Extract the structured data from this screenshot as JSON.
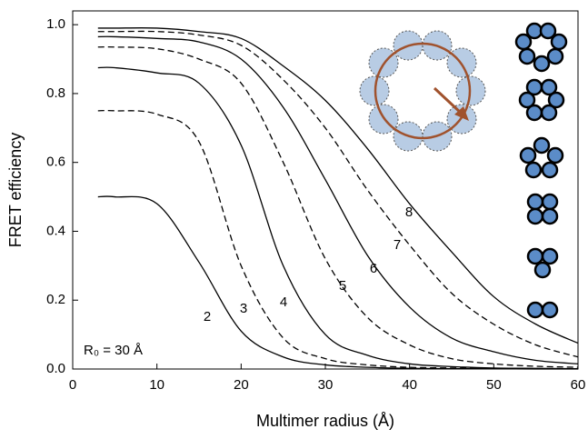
{
  "chart_data": {
    "type": "line",
    "xlabel": "Multimer radius (Å)",
    "ylabel": "FRET efficiency",
    "annotation": "R₀ = 30 Å",
    "x": [
      3,
      5,
      10,
      15,
      20,
      25,
      30,
      35,
      40,
      45,
      50,
      55,
      60
    ],
    "series": [
      {
        "name": "2",
        "color": "#000000",
        "dash": false,
        "values": [
          0.5,
          0.5,
          0.48,
          0.31,
          0.11,
          0.035,
          0.012,
          0.005,
          0.002,
          0.001,
          0.001,
          0,
          0
        ]
      },
      {
        "name": "3",
        "color": "#000000",
        "dash": true,
        "values": [
          0.75,
          0.75,
          0.74,
          0.66,
          0.3,
          0.09,
          0.03,
          0.012,
          0.005,
          0.003,
          0.002,
          0.001,
          0.001
        ]
      },
      {
        "name": "4",
        "color": "#000000",
        "dash": false,
        "values": [
          0.875,
          0.875,
          0.86,
          0.83,
          0.65,
          0.3,
          0.1,
          0.04,
          0.015,
          0.007,
          0.003,
          0.002,
          0.001
        ]
      },
      {
        "name": "5",
        "color": "#000000",
        "dash": true,
        "values": [
          0.935,
          0.935,
          0.93,
          0.9,
          0.83,
          0.6,
          0.32,
          0.15,
          0.07,
          0.03,
          0.015,
          0.008,
          0.005
        ]
      },
      {
        "name": "6",
        "color": "#000000",
        "dash": false,
        "values": [
          0.965,
          0.965,
          0.96,
          0.95,
          0.9,
          0.76,
          0.55,
          0.33,
          0.18,
          0.09,
          0.05,
          0.025,
          0.015
        ]
      },
      {
        "name": "7",
        "color": "#000000",
        "dash": true,
        "values": [
          0.98,
          0.98,
          0.98,
          0.97,
          0.94,
          0.84,
          0.7,
          0.52,
          0.36,
          0.22,
          0.13,
          0.07,
          0.035
        ]
      },
      {
        "name": "8",
        "color": "#000000",
        "dash": false,
        "values": [
          0.99,
          0.99,
          0.99,
          0.98,
          0.96,
          0.88,
          0.78,
          0.64,
          0.48,
          0.34,
          0.21,
          0.13,
          0.075
        ]
      }
    ],
    "xlim": [
      0,
      60
    ],
    "xticks": [
      0,
      10,
      20,
      30,
      40,
      50,
      60
    ],
    "ylim": [
      0,
      1.04
    ],
    "yticks": [
      {
        "value": 0,
        "label": "0.0"
      },
      {
        "value": 0.2,
        "label": "0.2"
      },
      {
        "value": 0.4,
        "label": "0.4"
      },
      {
        "value": 0.6,
        "label": "0.6"
      },
      {
        "value": 0.8,
        "label": "0.8"
      },
      {
        "value": 1,
        "label": "1.0"
      }
    ],
    "grid": false
  }
}
